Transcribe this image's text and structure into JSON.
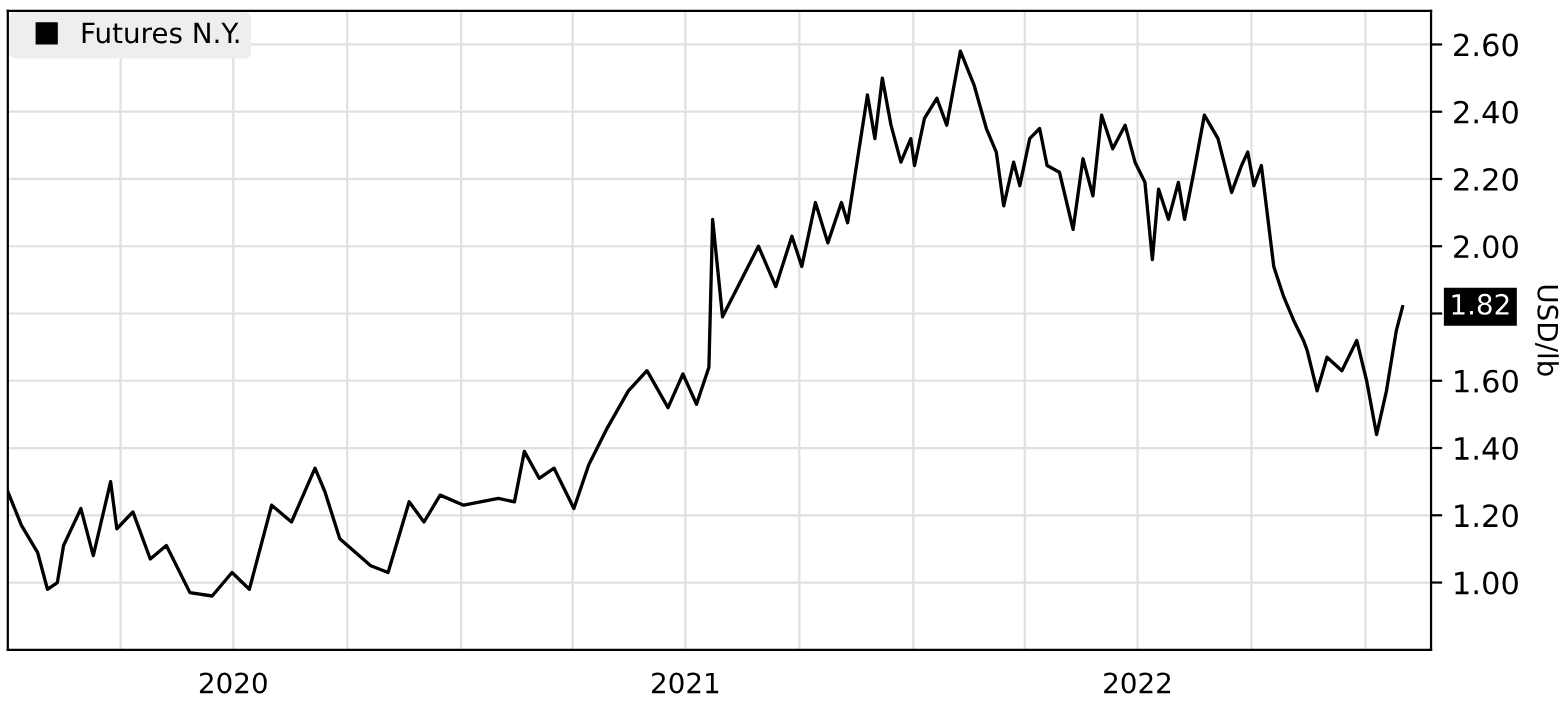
{
  "chart_data": {
    "type": "line",
    "x": [
      "2020-01-01",
      "2020-01-12",
      "2020-01-25",
      "2020-02-02",
      "2020-02-10",
      "2020-02-15",
      "2020-02-29",
      "2020-03-10",
      "2020-03-24",
      "2020-03-29",
      "2020-04-11",
      "2020-04-25",
      "2020-05-08",
      "2020-05-27",
      "2020-06-14",
      "2020-06-30",
      "2020-07-14",
      "2020-08-01",
      "2020-08-17",
      "2020-09-05",
      "2020-09-13",
      "2020-09-25",
      "2020-10-20",
      "2020-11-03",
      "2020-11-20",
      "2020-12-02",
      "2020-12-15",
      "2021-01-03",
      "2021-01-31",
      "2021-02-13",
      "2021-02-21",
      "2021-03-05",
      "2021-03-17",
      "2021-04-02",
      "2021-04-14",
      "2021-04-29",
      "2021-05-16",
      "2021-05-31",
      "2021-06-17",
      "2021-06-29",
      "2021-07-10",
      "2021-07-20",
      "2021-07-23",
      "2021-07-31",
      "2021-08-29",
      "2021-09-12",
      "2021-09-25",
      "2021-10-03",
      "2021-10-14",
      "2021-10-24",
      "2021-11-04",
      "2021-11-09",
      "2021-11-17",
      "2021-11-25",
      "2021-12-01",
      "2021-12-07",
      "2021-12-14",
      "2021-12-22",
      "2021-12-30",
      "2022-01-02",
      "2022-01-10",
      "2022-01-20",
      "2022-01-28",
      "2022-02-08",
      "2022-02-19",
      "2022-03-01",
      "2022-03-09",
      "2022-03-15",
      "2022-03-23",
      "2022-03-28",
      "2022-04-05",
      "2022-04-13",
      "2022-04-19",
      "2022-04-29",
      "2022-05-10",
      "2022-05-18",
      "2022-05-26",
      "2022-06-02",
      "2022-06-11",
      "2022-06-21",
      "2022-06-29",
      "2022-07-07",
      "2022-07-13",
      "2022-07-18",
      "2022-07-26",
      "2022-08-03",
      "2022-08-08",
      "2022-08-16",
      "2022-08-24",
      "2022-09-04",
      "2022-09-15",
      "2022-09-23",
      "2022-09-28",
      "2022-10-03",
      "2022-10-09",
      "2022-10-14",
      "2022-10-19",
      "2022-10-27",
      "2022-11-04",
      "2022-11-12",
      "2022-11-15",
      "2022-11-23",
      "2022-12-01",
      "2022-12-13",
      "2022-12-25",
      "2023-01-02",
      "2023-01-10",
      "2023-01-18",
      "2023-01-26",
      "2023-01-31"
    ],
    "series": [
      {
        "name": "Futures N.Y.",
        "color": "#000000",
        "values": [
          1.27,
          1.17,
          1.09,
          0.98,
          1.0,
          1.11,
          1.22,
          1.08,
          1.3,
          1.16,
          1.21,
          1.07,
          1.11,
          0.97,
          0.96,
          1.03,
          0.98,
          1.23,
          1.18,
          1.34,
          1.27,
          1.13,
          1.05,
          1.03,
          1.24,
          1.18,
          1.26,
          1.23,
          1.25,
          1.24,
          1.39,
          1.31,
          1.34,
          1.22,
          1.35,
          1.46,
          1.57,
          1.63,
          1.52,
          1.62,
          1.53,
          1.64,
          2.08,
          1.79,
          2.0,
          1.88,
          2.03,
          1.94,
          2.13,
          2.01,
          2.13,
          2.07,
          2.26,
          2.45,
          2.32,
          2.5,
          2.36,
          2.25,
          2.32,
          2.24,
          2.38,
          2.44,
          2.36,
          2.58,
          2.48,
          2.35,
          2.28,
          2.12,
          2.25,
          2.18,
          2.32,
          2.35,
          2.24,
          2.22,
          2.05,
          2.26,
          2.15,
          2.39,
          2.29,
          2.36,
          2.25,
          2.19,
          1.96,
          2.17,
          2.08,
          2.19,
          2.08,
          2.23,
          2.39,
          2.32,
          2.16,
          2.24,
          2.28,
          2.18,
          2.24,
          2.09,
          1.94,
          1.85,
          1.78,
          1.72,
          1.69,
          1.57,
          1.67,
          1.63,
          1.72,
          1.6,
          1.44,
          1.57,
          1.75,
          1.82
        ]
      }
    ],
    "ylabel": "USD/lb",
    "xlim": [
      "2020-01-01",
      "2023-02-23"
    ],
    "xticks": [
      {
        "value": "2020-04-01",
        "label": null
      },
      {
        "value": "2020-07-01",
        "label": "2020"
      },
      {
        "value": "2020-10-01",
        "label": null
      },
      {
        "value": "2021-01-01",
        "label": null
      },
      {
        "value": "2021-04-01",
        "label": null
      },
      {
        "value": "2021-07-01",
        "label": "2021"
      },
      {
        "value": "2021-10-01",
        "label": null
      },
      {
        "value": "2022-01-01",
        "label": null
      },
      {
        "value": "2022-04-01",
        "label": null
      },
      {
        "value": "2022-07-01",
        "label": "2022"
      },
      {
        "value": "2022-10-01",
        "label": null
      },
      {
        "value": "2023-01-01",
        "label": null
      }
    ],
    "ylim": [
      0.8,
      2.7
    ],
    "yticks": [
      {
        "value": 1.0,
        "label": "1.00"
      },
      {
        "value": 1.2,
        "label": "1.20"
      },
      {
        "value": 1.4,
        "label": "1.40"
      },
      {
        "value": 1.6,
        "label": "1.60"
      },
      {
        "value": 1.8,
        "label": null
      },
      {
        "value": 2.0,
        "label": "2.00"
      },
      {
        "value": 2.2,
        "label": "2.20"
      },
      {
        "value": 2.4,
        "label": "2.40"
      },
      {
        "value": 2.6,
        "label": "2.60"
      }
    ],
    "annotations": [
      {
        "text": "1.82",
        "x": "2023-01-31",
        "y": 1.82
      }
    ],
    "grid": true,
    "legend": "top left",
    "marker": "none",
    "line_style": "solid"
  }
}
